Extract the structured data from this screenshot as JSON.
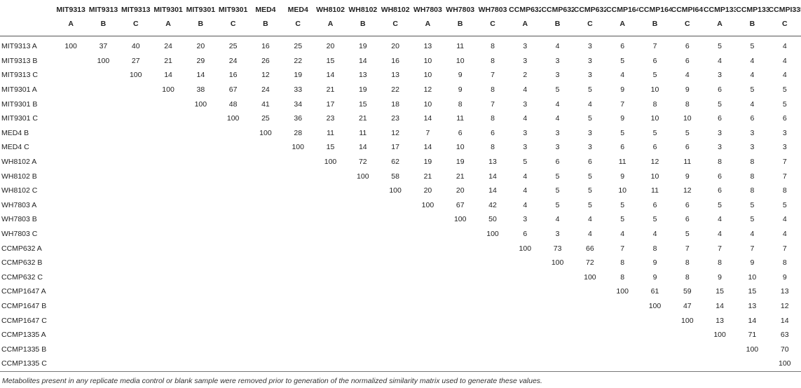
{
  "columns": [
    {
      "name": "MIT9313",
      "rep": "A"
    },
    {
      "name": "MIT9313",
      "rep": "B"
    },
    {
      "name": "MIT9313",
      "rep": "C"
    },
    {
      "name": "MIT9301",
      "rep": "A"
    },
    {
      "name": "MIT9301",
      "rep": "B"
    },
    {
      "name": "MIT9301",
      "rep": "C"
    },
    {
      "name": "MED4",
      "rep": "B"
    },
    {
      "name": "MED4",
      "rep": "C"
    },
    {
      "name": "WH8102",
      "rep": "A"
    },
    {
      "name": "WH8102",
      "rep": "B"
    },
    {
      "name": "WH8102",
      "rep": "C"
    },
    {
      "name": "WH7803",
      "rep": "A"
    },
    {
      "name": "WH7803",
      "rep": "B"
    },
    {
      "name": "WH7803",
      "rep": "C"
    },
    {
      "name": "CCMP632",
      "rep": "A"
    },
    {
      "name": "CCMP632",
      "rep": "B"
    },
    {
      "name": "CCMP632",
      "rep": "C"
    },
    {
      "name": "CCMP1647",
      "rep": "A"
    },
    {
      "name": "CCMP1647",
      "rep": "B"
    },
    {
      "name": "CCMPI647",
      "rep": "C"
    },
    {
      "name": "CCMP1335",
      "rep": "A"
    },
    {
      "name": "CCMP1335",
      "rep": "B"
    },
    {
      "name": "CCMPI335",
      "rep": "C"
    }
  ],
  "rows": [
    {
      "label": "MIT9313 A",
      "values": [
        "100",
        "37",
        "40",
        "24",
        "20",
        "25",
        "16",
        "25",
        "20",
        "19",
        "20",
        "13",
        "11",
        "8",
        "3",
        "4",
        "3",
        "6",
        "7",
        "6",
        "5",
        "5",
        "4"
      ]
    },
    {
      "label": "MIT9313 B",
      "values": [
        "",
        "100",
        "27",
        "21",
        "29",
        "24",
        "26",
        "22",
        "15",
        "14",
        "16",
        "10",
        "10",
        "8",
        "3",
        "3",
        "3",
        "5",
        "6",
        "6",
        "4",
        "4",
        "4"
      ]
    },
    {
      "label": "MIT9313 C",
      "values": [
        "",
        "",
        "100",
        "14",
        "14",
        "16",
        "12",
        "19",
        "14",
        "13",
        "13",
        "10",
        "9",
        "7",
        "2",
        "3",
        "3",
        "4",
        "5",
        "4",
        "3",
        "4",
        "4"
      ]
    },
    {
      "label": "MIT9301 A",
      "values": [
        "",
        "",
        "",
        "100",
        "38",
        "67",
        "24",
        "33",
        "21",
        "19",
        "22",
        "12",
        "9",
        "8",
        "4",
        "5",
        "5",
        "9",
        "10",
        "9",
        "6",
        "5",
        "5"
      ]
    },
    {
      "label": "MIT9301 B",
      "values": [
        "",
        "",
        "",
        "",
        "100",
        "48",
        "41",
        "34",
        "17",
        "15",
        "18",
        "10",
        "8",
        "7",
        "3",
        "4",
        "4",
        "7",
        "8",
        "8",
        "5",
        "4",
        "5"
      ]
    },
    {
      "label": "MIT9301 C",
      "values": [
        "",
        "",
        "",
        "",
        "",
        "100",
        "25",
        "36",
        "23",
        "21",
        "23",
        "14",
        "11",
        "8",
        "4",
        "4",
        "5",
        "9",
        "10",
        "10",
        "6",
        "6",
        "6"
      ]
    },
    {
      "label": "MED4 B",
      "values": [
        "",
        "",
        "",
        "",
        "",
        "",
        "100",
        "28",
        "11",
        "11",
        "12",
        "7",
        "6",
        "6",
        "3",
        "3",
        "3",
        "5",
        "5",
        "5",
        "3",
        "3",
        "3"
      ]
    },
    {
      "label": "MED4 C",
      "values": [
        "",
        "",
        "",
        "",
        "",
        "",
        "",
        "100",
        "15",
        "14",
        "17",
        "14",
        "10",
        "8",
        "3",
        "3",
        "3",
        "6",
        "6",
        "6",
        "3",
        "3",
        "3"
      ]
    },
    {
      "label": "WH8102 A",
      "values": [
        "",
        "",
        "",
        "",
        "",
        "",
        "",
        "",
        "100",
        "72",
        "62",
        "19",
        "19",
        "13",
        "5",
        "6",
        "6",
        "11",
        "12",
        "11",
        "8",
        "8",
        "7"
      ]
    },
    {
      "label": "WH8102 B",
      "values": [
        "",
        "",
        "",
        "",
        "",
        "",
        "",
        "",
        "",
        "100",
        "58",
        "21",
        "21",
        "14",
        "4",
        "5",
        "5",
        "9",
        "10",
        "9",
        "6",
        "8",
        "7"
      ]
    },
    {
      "label": "WH8102 C",
      "values": [
        "",
        "",
        "",
        "",
        "",
        "",
        "",
        "",
        "",
        "",
        "100",
        "20",
        "20",
        "14",
        "4",
        "5",
        "5",
        "10",
        "11",
        "12",
        "6",
        "8",
        "8"
      ]
    },
    {
      "label": "WH7803 A",
      "values": [
        "",
        "",
        "",
        "",
        "",
        "",
        "",
        "",
        "",
        "",
        "",
        "100",
        "67",
        "42",
        "4",
        "5",
        "5",
        "5",
        "6",
        "6",
        "5",
        "5",
        "5"
      ]
    },
    {
      "label": "WH7803 B",
      "values": [
        "",
        "",
        "",
        "",
        "",
        "",
        "",
        "",
        "",
        "",
        "",
        "",
        "100",
        "50",
        "3",
        "4",
        "4",
        "5",
        "5",
        "6",
        "4",
        "5",
        "4"
      ]
    },
    {
      "label": "WH7803 C",
      "values": [
        "",
        "",
        "",
        "",
        "",
        "",
        "",
        "",
        "",
        "",
        "",
        "",
        "",
        "100",
        "6",
        "3",
        "4",
        "4",
        "4",
        "5",
        "4",
        "4",
        "4"
      ]
    },
    {
      "label": "CCMP632 A",
      "values": [
        "",
        "",
        "",
        "",
        "",
        "",
        "",
        "",
        "",
        "",
        "",
        "",
        "",
        "",
        "100",
        "73",
        "66",
        "7",
        "8",
        "7",
        "7",
        "7",
        "7"
      ]
    },
    {
      "label": "CCMP632 B",
      "values": [
        "",
        "",
        "",
        "",
        "",
        "",
        "",
        "",
        "",
        "",
        "",
        "",
        "",
        "",
        "",
        "100",
        "72",
        "8",
        "9",
        "8",
        "8",
        "9",
        "8"
      ]
    },
    {
      "label": "CCMP632 C",
      "values": [
        "",
        "",
        "",
        "",
        "",
        "",
        "",
        "",
        "",
        "",
        "",
        "",
        "",
        "",
        "",
        "",
        "100",
        "8",
        "9",
        "8",
        "9",
        "10",
        "9"
      ]
    },
    {
      "label": "CCMP1647 A",
      "values": [
        "",
        "",
        "",
        "",
        "",
        "",
        "",
        "",
        "",
        "",
        "",
        "",
        "",
        "",
        "",
        "",
        "",
        "100",
        "61",
        "59",
        "15",
        "15",
        "13"
      ]
    },
    {
      "label": "CCMP1647 B",
      "values": [
        "",
        "",
        "",
        "",
        "",
        "",
        "",
        "",
        "",
        "",
        "",
        "",
        "",
        "",
        "",
        "",
        "",
        "",
        "100",
        "47",
        "14",
        "13",
        "12"
      ]
    },
    {
      "label": "CCMP1647 C",
      "values": [
        "",
        "",
        "",
        "",
        "",
        "",
        "",
        "",
        "",
        "",
        "",
        "",
        "",
        "",
        "",
        "",
        "",
        "",
        "",
        "100",
        "13",
        "14",
        "14"
      ]
    },
    {
      "label": "CCMP1335 A",
      "values": [
        "",
        "",
        "",
        "",
        "",
        "",
        "",
        "",
        "",
        "",
        "",
        "",
        "",
        "",
        "",
        "",
        "",
        "",
        "",
        "",
        "100",
        "71",
        "63"
      ]
    },
    {
      "label": "CCMP1335 B",
      "values": [
        "",
        "",
        "",
        "",
        "",
        "",
        "",
        "",
        "",
        "",
        "",
        "",
        "",
        "",
        "",
        "",
        "",
        "",
        "",
        "",
        "",
        "100",
        "70"
      ]
    },
    {
      "label": "CCMP1335 C",
      "values": [
        "",
        "",
        "",
        "",
        "",
        "",
        "",
        "",
        "",
        "",
        "",
        "",
        "",
        "",
        "",
        "",
        "",
        "",
        "",
        "",
        "",
        "",
        "100"
      ]
    }
  ],
  "footnote": "Metabolites present in any replicate media control or blank sample were removed prior to generation of the normalized similarity matrix used to generate these values."
}
